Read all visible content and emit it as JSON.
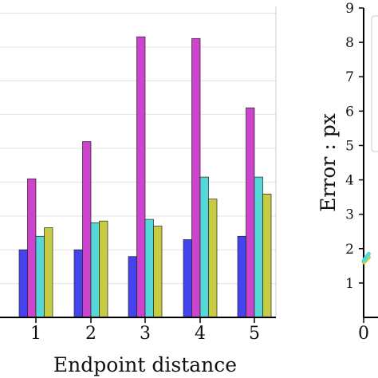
{
  "chart_data": [
    {
      "type": "bar",
      "title": "",
      "xlabel": "Endpoint distance",
      "ylabel": "",
      "categories": [
        "1",
        "2",
        "3",
        "4",
        "5"
      ],
      "ylim": [
        0,
        9.2
      ],
      "grid": true,
      "series": [
        {
          "color": "#4444ee",
          "values": [
            2.0,
            2.0,
            1.8,
            2.3,
            2.4
          ]
        },
        {
          "color": "#cc44cc",
          "values": [
            4.1,
            5.2,
            8.3,
            8.25,
            6.2
          ]
        },
        {
          "color": "#55d8d8",
          "values": [
            2.4,
            2.8,
            2.9,
            4.15,
            4.15
          ]
        },
        {
          "color": "#c8cc44",
          "values": [
            2.65,
            2.85,
            2.7,
            3.5,
            3.65
          ]
        }
      ]
    },
    {
      "type": "line",
      "title": "",
      "xlabel": "",
      "ylabel": "Error : px",
      "ylim": [
        0,
        9
      ],
      "yticks": [
        1,
        2,
        3,
        4,
        5,
        6,
        7,
        8,
        9
      ],
      "xticks": [
        "0"
      ],
      "series": [
        {
          "color": "#c8cc44",
          "x": [
            0,
            0.4
          ],
          "y": [
            1.6,
            1.75
          ]
        },
        {
          "color": "#55d8d8",
          "x": [
            0,
            0.4
          ],
          "y": [
            1.65,
            1.85
          ]
        }
      ]
    }
  ]
}
